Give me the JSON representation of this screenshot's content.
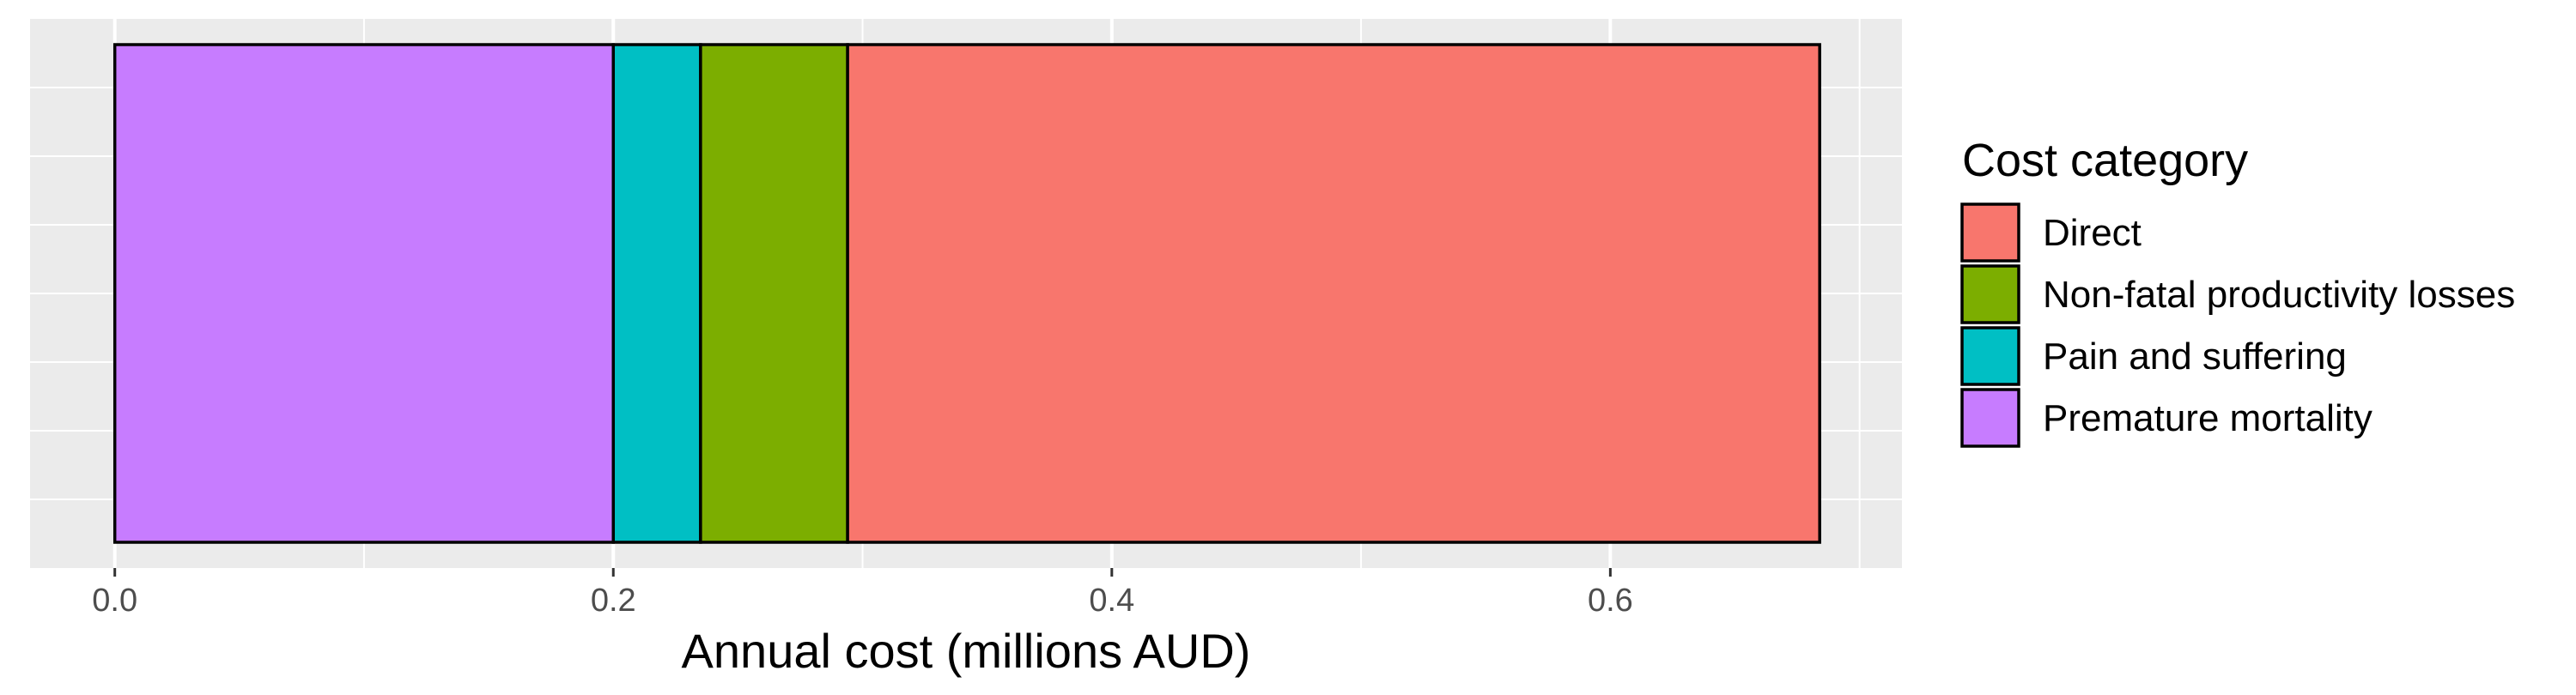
{
  "chart_data": {
    "type": "bar",
    "orientation": "horizontal",
    "stacked": true,
    "xlabel": "Annual cost (millions AUD)",
    "ylabel": "",
    "xlim": [
      -0.034,
      0.717
    ],
    "x_ticks": [
      0.0,
      0.2,
      0.4,
      0.6
    ],
    "x_tick_labels": [
      "0.0",
      "0.2",
      "0.4",
      "0.6"
    ],
    "grid": true,
    "legend": {
      "title": "Cost category",
      "placement": "right",
      "items": [
        {
          "label": "Direct",
          "color": "#F8766D"
        },
        {
          "label": "Non-fatal productivity losses",
          "color": "#7CAE00"
        },
        {
          "label": "Pain and suffering",
          "color": "#00BFC4"
        },
        {
          "label": "Premature mortality",
          "color": "#C77CFF"
        }
      ]
    },
    "series": [
      {
        "name": "Premature mortality",
        "value": 0.2,
        "color": "#C77CFF"
      },
      {
        "name": "Pain and suffering",
        "value": 0.035,
        "color": "#00BFC4"
      },
      {
        "name": "Non-fatal productivity losses",
        "value": 0.059,
        "color": "#7CAE00"
      },
      {
        "name": "Direct",
        "value": 0.39,
        "color": "#F8766D"
      }
    ],
    "panel_background": "#EBEBEB",
    "bar_outline": "#000000"
  }
}
